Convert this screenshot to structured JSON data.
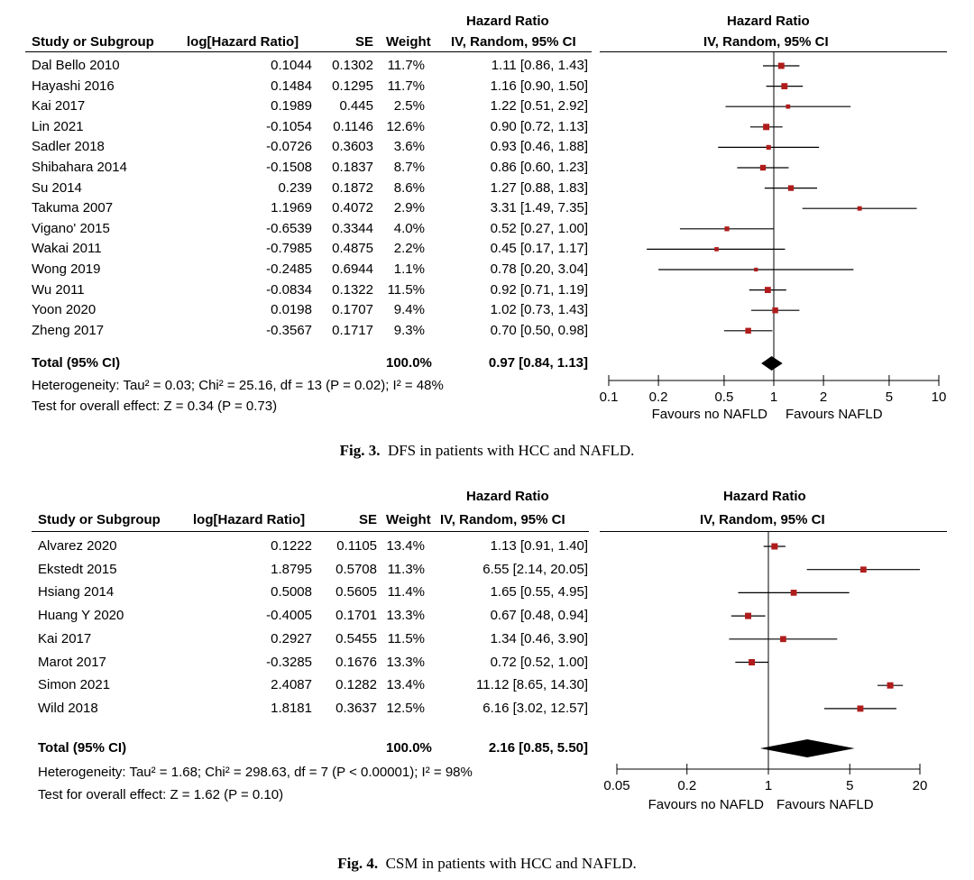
{
  "chart_data": [
    {
      "type": "forest",
      "title": "Fig. 3.",
      "subtitle": "DFS in patients with HCC and NAFLD.",
      "headers": {
        "study": "Study or Subgroup",
        "log_hr": "log[Hazard Ratio]",
        "se": "SE",
        "weight": "Weight",
        "hr_group": "Hazard Ratio",
        "hr_method": "IV, Random, 95% CI",
        "plot_group": "Hazard Ratio",
        "plot_method": "IV, Random, 95% CI"
      },
      "studies": [
        {
          "name": "Dal Bello 2010",
          "log_hr": "0.1044",
          "se": "0.1302",
          "weight": "11.7%",
          "ci_text": "1.11 [0.86, 1.43]",
          "hr": 1.11,
          "lo": 0.86,
          "hi": 1.43
        },
        {
          "name": "Hayashi 2016",
          "log_hr": "0.1484",
          "se": "0.1295",
          "weight": "11.7%",
          "ci_text": "1.16 [0.90, 1.50]",
          "hr": 1.16,
          "lo": 0.9,
          "hi": 1.5
        },
        {
          "name": "Kai 2017",
          "log_hr": "0.1989",
          "se": "0.445",
          "weight": "2.5%",
          "ci_text": "1.22 [0.51, 2.92]",
          "hr": 1.22,
          "lo": 0.51,
          "hi": 2.92
        },
        {
          "name": "Lin 2021",
          "log_hr": "-0.1054",
          "se": "0.1146",
          "weight": "12.6%",
          "ci_text": "0.90 [0.72, 1.13]",
          "hr": 0.9,
          "lo": 0.72,
          "hi": 1.13
        },
        {
          "name": "Sadler 2018",
          "log_hr": "-0.0726",
          "se": "0.3603",
          "weight": "3.6%",
          "ci_text": "0.93 [0.46, 1.88]",
          "hr": 0.93,
          "lo": 0.46,
          "hi": 1.88
        },
        {
          "name": "Shibahara 2014",
          "log_hr": "-0.1508",
          "se": "0.1837",
          "weight": "8.7%",
          "ci_text": "0.86 [0.60, 1.23]",
          "hr": 0.86,
          "lo": 0.6,
          "hi": 1.23
        },
        {
          "name": "Su 2014",
          "log_hr": "0.239",
          "se": "0.1872",
          "weight": "8.6%",
          "ci_text": "1.27 [0.88, 1.83]",
          "hr": 1.27,
          "lo": 0.88,
          "hi": 1.83
        },
        {
          "name": "Takuma 2007",
          "log_hr": "1.1969",
          "se": "0.4072",
          "weight": "2.9%",
          "ci_text": "3.31 [1.49, 7.35]",
          "hr": 3.31,
          "lo": 1.49,
          "hi": 7.35
        },
        {
          "name": "Vigano' 2015",
          "log_hr": "-0.6539",
          "se": "0.3344",
          "weight": "4.0%",
          "ci_text": "0.52 [0.27, 1.00]",
          "hr": 0.52,
          "lo": 0.27,
          "hi": 1.0
        },
        {
          "name": "Wakai 2011",
          "log_hr": "-0.7985",
          "se": "0.4875",
          "weight": "2.2%",
          "ci_text": "0.45 [0.17, 1.17]",
          "hr": 0.45,
          "lo": 0.17,
          "hi": 1.17
        },
        {
          "name": "Wong 2019",
          "log_hr": "-0.2485",
          "se": "0.6944",
          "weight": "1.1%",
          "ci_text": "0.78 [0.20, 3.04]",
          "hr": 0.78,
          "lo": 0.2,
          "hi": 3.04
        },
        {
          "name": "Wu 2011",
          "log_hr": "-0.0834",
          "se": "0.1322",
          "weight": "11.5%",
          "ci_text": "0.92 [0.71, 1.19]",
          "hr": 0.92,
          "lo": 0.71,
          "hi": 1.19
        },
        {
          "name": "Yoon 2020",
          "log_hr": "0.0198",
          "se": "0.1707",
          "weight": "9.4%",
          "ci_text": "1.02 [0.73, 1.43]",
          "hr": 1.02,
          "lo": 0.73,
          "hi": 1.43
        },
        {
          "name": "Zheng 2017",
          "log_hr": "-0.3567",
          "se": "0.1717",
          "weight": "9.3%",
          "ci_text": "0.70 [0.50, 0.98]",
          "hr": 0.7,
          "lo": 0.5,
          "hi": 0.98
        }
      ],
      "total": {
        "label": "Total (95% CI)",
        "weight": "100.0%",
        "ci_text": "0.97 [0.84, 1.13]",
        "hr": 0.97,
        "lo": 0.84,
        "hi": 1.13
      },
      "heterogeneity": "Heterogeneity: Tau² = 0.03; Chi² = 25.16, df = 13 (P = 0.02); I² = 48%",
      "overall_effect": "Test for overall effect: Z = 0.34 (P = 0.73)",
      "axis": {
        "scale": "log",
        "xlim": [
          0.1,
          10
        ],
        "ticks": [
          0.1,
          0.2,
          0.5,
          1,
          2,
          5,
          10
        ],
        "tick_labels": [
          "0.1",
          "0.2",
          "0.5",
          "1",
          "2",
          "5",
          "10"
        ],
        "favours_left": "Favours no NAFLD",
        "favours_right": "Favours NAFLD"
      }
    },
    {
      "type": "forest",
      "title": "Fig. 4.",
      "subtitle": "CSM in patients with HCC and NAFLD.",
      "headers": {
        "study": "Study or Subgroup",
        "log_hr": "log[Hazard Ratio]",
        "se": "SE",
        "weight": "Weight",
        "hr_group": "Hazard Ratio",
        "hr_method": "IV, Random, 95% CI",
        "plot_group": "Hazard Ratio",
        "plot_method": "IV, Random, 95% CI"
      },
      "studies": [
        {
          "name": "Alvarez 2020",
          "log_hr": "0.1222",
          "se": "0.1105",
          "weight": "13.4%",
          "ci_text": "1.13 [0.91, 1.40]",
          "hr": 1.13,
          "lo": 0.91,
          "hi": 1.4
        },
        {
          "name": "Ekstedt 2015",
          "log_hr": "1.8795",
          "se": "0.5708",
          "weight": "11.3%",
          "ci_text": "6.55 [2.14, 20.05]",
          "hr": 6.55,
          "lo": 2.14,
          "hi": 20.05
        },
        {
          "name": "Hsiang 2014",
          "log_hr": "0.5008",
          "se": "0.5605",
          "weight": "11.4%",
          "ci_text": "1.65 [0.55, 4.95]",
          "hr": 1.65,
          "lo": 0.55,
          "hi": 4.95
        },
        {
          "name": "Huang Y 2020",
          "log_hr": "-0.4005",
          "se": "0.1701",
          "weight": "13.3%",
          "ci_text": "0.67 [0.48, 0.94]",
          "hr": 0.67,
          "lo": 0.48,
          "hi": 0.94
        },
        {
          "name": "Kai 2017",
          "log_hr": "0.2927",
          "se": "0.5455",
          "weight": "11.5%",
          "ci_text": "1.34 [0.46, 3.90]",
          "hr": 1.34,
          "lo": 0.46,
          "hi": 3.9
        },
        {
          "name": "Marot 2017",
          "log_hr": "-0.3285",
          "se": "0.1676",
          "weight": "13.3%",
          "ci_text": "0.72 [0.52, 1.00]",
          "hr": 0.72,
          "lo": 0.52,
          "hi": 1.0
        },
        {
          "name": "Simon 2021",
          "log_hr": "2.4087",
          "se": "0.1282",
          "weight": "13.4%",
          "ci_text": "11.12 [8.65, 14.30]",
          "hr": 11.12,
          "lo": 8.65,
          "hi": 14.3
        },
        {
          "name": "Wild 2018",
          "log_hr": "1.8181",
          "se": "0.3637",
          "weight": "12.5%",
          "ci_text": "6.16 [3.02, 12.57]",
          "hr": 6.16,
          "lo": 3.02,
          "hi": 12.57
        }
      ],
      "total": {
        "label": "Total (95% CI)",
        "weight": "100.0%",
        "ci_text": "2.16 [0.85, 5.50]",
        "hr": 2.16,
        "lo": 0.85,
        "hi": 5.5
      },
      "heterogeneity": "Heterogeneity: Tau² = 1.68; Chi² = 298.63, df = 7 (P < 0.00001); I² = 98%",
      "overall_effect": "Test for overall effect: Z = 1.62 (P = 0.10)",
      "axis": {
        "scale": "log",
        "xlim": [
          0.05,
          20
        ],
        "ticks": [
          0.05,
          0.2,
          1,
          5,
          20
        ],
        "tick_labels": [
          "0.05",
          "0.2",
          "1",
          "5",
          "20"
        ],
        "favours_left": "Favours no NAFLD",
        "favours_right": "Favours NAFLD"
      }
    }
  ],
  "colors": {
    "point": "#b01c1c",
    "line": "#000000"
  }
}
